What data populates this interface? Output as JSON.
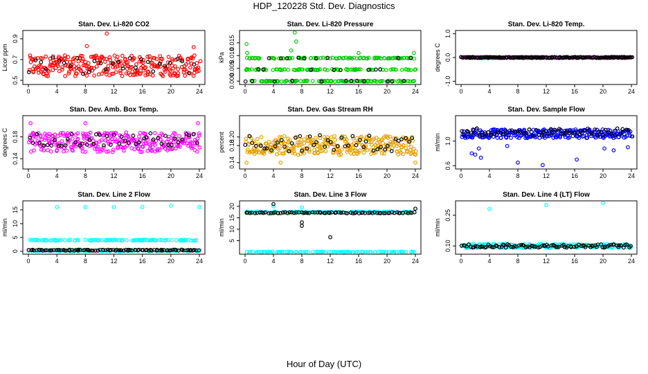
{
  "page_title": "HDP_120228  Std. Dev. Diagnostics",
  "x_caption": "Hour of Day (UTC)",
  "chart_data": [
    {
      "type": "scatter",
      "title": "Stan. Dev. Li-820 CO2",
      "ylabel": "Licor ppm",
      "xlim": [
        0,
        24
      ],
      "ylim": [
        0.48,
        0.96
      ],
      "xticks": [
        0,
        4,
        8,
        12,
        16,
        20,
        24
      ],
      "yticks": [
        0.5,
        0.7,
        0.9
      ],
      "ytick_labels": [
        "0.5",
        "0.7",
        "0.9"
      ],
      "series": [
        {
          "color": "#ff0000",
          "density": 3,
          "center": 0.64,
          "spread": 0.1,
          "outliers": [
            [
              11,
              0.95
            ],
            [
              8.2,
              0.83
            ],
            [
              23.2,
              0.82
            ]
          ]
        },
        {
          "color": "#000000",
          "density": 0.3,
          "center": 0.64,
          "spread": 0.08,
          "outliers": []
        }
      ]
    },
    {
      "type": "scatter",
      "title": "Stan. Dev. Li-820 Pressure",
      "ylabel": "kPa",
      "xlim": [
        0,
        24
      ],
      "ylim": [
        -0.0005,
        0.019
      ],
      "xticks": [
        0,
        4,
        8,
        12,
        16,
        20,
        24
      ],
      "yticks": [
        0,
        0.005,
        0.01,
        0.015
      ],
      "ytick_labels": [
        "0.000",
        "0.005",
        "0.010",
        "0.015"
      ],
      "series": [
        {
          "color": "#00cc00",
          "density": 3,
          "levels": [
            0,
            0.0045,
            0.009
          ],
          "outliers": [
            [
              7,
              0.019
            ],
            [
              0.2,
              0.0145
            ],
            [
              0.3,
              0.011
            ],
            [
              7.2,
              0.0155
            ],
            [
              16,
              0.011
            ],
            [
              23.8,
              0.011
            ],
            [
              6.5,
              0.012
            ]
          ]
        },
        {
          "color": "#000000",
          "density": 0.3,
          "levels": [
            0,
            0.0045,
            0.009
          ],
          "outliers": []
        }
      ]
    },
    {
      "type": "scatter",
      "title": "Stan. Dev. Li-820 Temp.",
      "ylabel": "degrees C",
      "xlim": [
        0,
        24
      ],
      "ylim": [
        -1.05,
        1.05
      ],
      "xticks": [
        0,
        4,
        8,
        12,
        16,
        20,
        24
      ],
      "yticks": [
        -1,
        0,
        1
      ],
      "ytick_labels": [
        "-1.0",
        "0.0",
        "1.0"
      ],
      "series": [
        {
          "color": "#ff00ff",
          "density": 1,
          "levels": [
            0
          ],
          "outliers": []
        },
        {
          "color": "#000000",
          "density": 2,
          "levels": [
            0
          ],
          "outliers": []
        }
      ]
    },
    {
      "type": "scatter",
      "title": "Stan. Dev. Amb. Box Temp.",
      "ylabel": "degrees C",
      "xlim": [
        0,
        24
      ],
      "ylim": [
        0.125,
        0.215
      ],
      "xticks": [
        0,
        4,
        8,
        12,
        16,
        20,
        24
      ],
      "yticks": [
        0.14,
        0.18
      ],
      "ytick_labels": [
        "0.14",
        "0.18"
      ],
      "series": [
        {
          "color": "#ff00ff",
          "density": 3,
          "center": 0.17,
          "spread": 0.018,
          "outliers": [
            [
              0.3,
              0.205
            ],
            [
              23.8,
              0.205
            ],
            [
              8,
              0.205
            ]
          ]
        },
        {
          "color": "#000000",
          "density": 0.5,
          "center": 0.175,
          "spread": 0.012,
          "outliers": []
        }
      ]
    },
    {
      "type": "scatter",
      "title": "Stan. Dev. Gas Stream RH",
      "ylabel": "percent",
      "xlim": [
        0,
        24
      ],
      "ylim": [
        0.13,
        0.245
      ],
      "xticks": [
        0,
        4,
        8,
        12,
        16,
        20,
        24
      ],
      "yticks": [
        0.14,
        0.18,
        0.2
      ],
      "ytick_labels": [
        "0.14",
        "0.18",
        "0.20"
      ],
      "series": [
        {
          "color": "#e6a000",
          "density": 3,
          "center": 0.18,
          "spread": 0.022,
          "outliers": [
            [
              0.2,
              0.14
            ],
            [
              5,
              0.14
            ],
            [
              24,
              0.14
            ]
          ]
        },
        {
          "color": "#000000",
          "density": 0.5,
          "center": 0.185,
          "spread": 0.02,
          "outliers": []
        }
      ]
    },
    {
      "type": "scatter",
      "title": "Stan. Dev. Sample Flow",
      "ylabel": "ml/min",
      "xlim": [
        0,
        24
      ],
      "ylim": [
        0.58,
        1.38
      ],
      "xticks": [
        0,
        4,
        8,
        12,
        16,
        20,
        24
      ],
      "yticks": [
        0.6,
        1.0
      ],
      "ytick_labels": [
        "0.6",
        "1.0"
      ],
      "series": [
        {
          "color": "#0000ff",
          "density": 3,
          "center": 1.12,
          "spread": 0.07,
          "outliers": [
            [
              2,
              0.78
            ],
            [
              2.5,
              0.88
            ],
            [
              1.5,
              0.8
            ],
            [
              2.8,
              0.73
            ],
            [
              8,
              0.65
            ],
            [
              11.5,
              0.61
            ],
            [
              16.3,
              0.7
            ],
            [
              6.5,
              0.92
            ],
            [
              21.5,
              0.85
            ],
            [
              23.5,
              0.9
            ],
            [
              20.2,
              0.88
            ]
          ]
        },
        {
          "color": "#000000",
          "density": 0.6,
          "center": 1.15,
          "spread": 0.06,
          "outliers": []
        }
      ]
    },
    {
      "type": "scatter",
      "title": "Stan. Dev. Line 2 Flow",
      "ylabel": "ml/min",
      "xlim": [
        0,
        24
      ],
      "ylim": [
        -0.3,
        17.5
      ],
      "xticks": [
        0,
        4,
        8,
        12,
        16,
        20,
        24
      ],
      "yticks": [
        0,
        5,
        10,
        15
      ],
      "ytick_labels": [
        "0",
        "5",
        "10",
        "15"
      ],
      "series": [
        {
          "color": "#00ffff",
          "density": 2,
          "levels": [
            0.2,
            4
          ],
          "outliers": [
            [
              4,
              16
            ],
            [
              8,
              16
            ],
            [
              12,
              16
            ],
            [
              16,
              16
            ],
            [
              20,
              16.5
            ],
            [
              24,
              16
            ]
          ]
        },
        {
          "color": "#000000",
          "density": 1,
          "levels": [
            0.4
          ],
          "outliers": []
        }
      ]
    },
    {
      "type": "scatter",
      "title": "Stan. Dev. Line 3 Flow",
      "ylabel": "ml/min",
      "xlim": [
        0,
        24
      ],
      "ylim": [
        0,
        21.5
      ],
      "xticks": [
        0,
        4,
        8,
        12,
        16,
        20,
        24
      ],
      "yticks": [
        5,
        10,
        15,
        20
      ],
      "ytick_labels": [
        "5",
        "10",
        "15",
        "20"
      ],
      "series": [
        {
          "color": "#00ffff",
          "density": 2,
          "levels": [
            0,
            17.5
          ],
          "outliers": [
            [
              8,
              19.5
            ],
            [
              4,
              20
            ],
            [
              24,
              19
            ]
          ]
        },
        {
          "color": "#000000",
          "density": 0.8,
          "levels": [
            17.2
          ],
          "outliers": [
            [
              4,
              21
            ],
            [
              8,
              13
            ],
            [
              8,
              11.5
            ],
            [
              12,
              6.5
            ],
            [
              24,
              19
            ]
          ]
        }
      ]
    },
    {
      "type": "scatter",
      "title": "Stan. Dev. Line 4 (LT) Flow",
      "ylabel": "ml/min",
      "xlim": [
        0,
        24
      ],
      "ylim": [
        0.07,
        0.31
      ],
      "xticks": [
        0,
        4,
        8,
        12,
        16,
        20,
        24
      ],
      "yticks": [
        0.1,
        0.25
      ],
      "ytick_labels": [
        "0.10",
        "0.25"
      ],
      "series": [
        {
          "color": "#00ffff",
          "density": 2,
          "center": 0.1,
          "spread": 0.01,
          "outliers": [
            [
              4,
              0.28
            ],
            [
              12,
              0.3
            ],
            [
              20,
              0.31
            ]
          ]
        },
        {
          "color": "#000000",
          "density": 1,
          "center": 0.1,
          "spread": 0.008,
          "outliers": []
        }
      ]
    }
  ]
}
